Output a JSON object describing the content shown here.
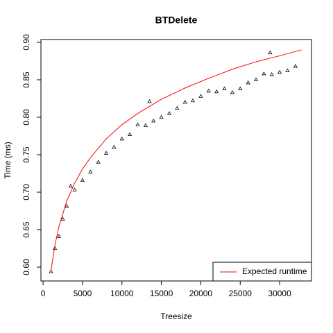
{
  "chart_data": {
    "type": "scatter",
    "title": "BTDelete",
    "x_label": "Treesize",
    "y_label": "Time (ms)",
    "xlim": [
      -271,
      34039
    ],
    "ylim": [
      0.5815,
      0.9037
    ],
    "xticks": [
      0,
      5000,
      10000,
      15000,
      20000,
      25000,
      30000
    ],
    "yticks": [
      {
        "value": 0.6,
        "label": "0.60"
      },
      {
        "value": 0.65,
        "label": "0.65"
      },
      {
        "value": 0.7,
        "label": "0.70"
      },
      {
        "value": 0.75,
        "label": "0.75"
      },
      {
        "value": 0.8,
        "label": "0.80"
      },
      {
        "value": 0.85,
        "label": "0.85"
      },
      {
        "value": 0.9,
        "label": "0.90"
      }
    ],
    "legend": "bottom-right",
    "series": [
      {
        "color": "#000000",
        "marker": "triangle",
        "x": [
          1000,
          1500,
          2000,
          2500,
          3000,
          3500,
          4000,
          5000,
          6000,
          7000,
          8000,
          9000,
          10000,
          11000,
          12000,
          13000,
          13500,
          14000,
          15000,
          16000,
          17000,
          18000,
          19000,
          20000,
          21000,
          22000,
          23000,
          24000,
          25000,
          26000,
          27000,
          28000,
          28800,
          29000,
          30000,
          31000,
          32000
        ],
        "values": [
          0.594,
          0.625,
          0.641,
          0.664,
          0.681,
          0.708,
          0.703,
          0.716,
          0.727,
          0.74,
          0.752,
          0.76,
          0.771,
          0.777,
          0.79,
          0.789,
          0.821,
          0.795,
          0.8,
          0.805,
          0.812,
          0.82,
          0.822,
          0.828,
          0.835,
          0.834,
          0.838,
          0.833,
          0.838,
          0.846,
          0.85,
          0.858,
          0.886,
          0.857,
          0.86,
          0.862,
          0.868
        ]
      },
      {
        "name": "Expected runtime",
        "color": "#ff0000",
        "line": true,
        "x": [
          1000,
          1500,
          2000,
          3000,
          4000,
          5000,
          6000,
          8000,
          10000,
          12000,
          15000,
          18000,
          21000,
          24000,
          27000,
          30000,
          32768
        ],
        "values": [
          0.595,
          0.629,
          0.654,
          0.688,
          0.712,
          0.731,
          0.746,
          0.771,
          0.79,
          0.805,
          0.824,
          0.839,
          0.852,
          0.864,
          0.874,
          0.882,
          0.89
        ]
      }
    ]
  }
}
